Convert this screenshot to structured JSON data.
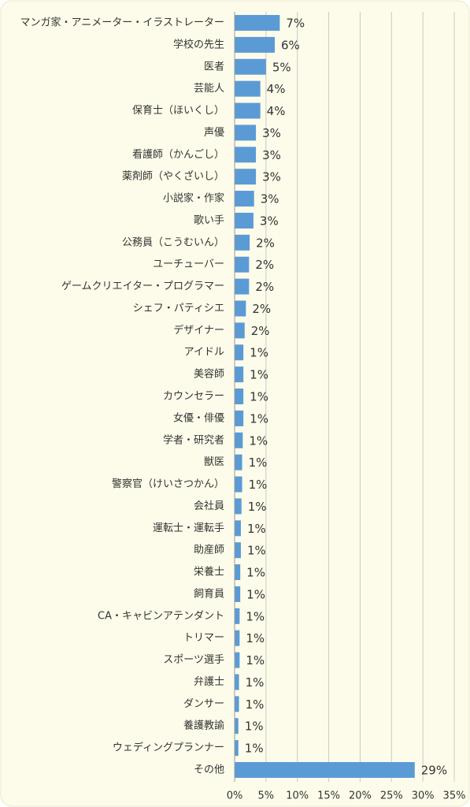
{
  "chart_data": {
    "type": "bar",
    "orientation": "horizontal",
    "categories": [
      "マンガ家・アニメーター・イラストレーター",
      "学校の先生",
      "医者",
      "芸能人",
      "保育士（ほいくし）",
      "声優",
      "看護師（かんごし）",
      "薬剤師（やくざいし）",
      "小説家・作家",
      "歌い手",
      "公務員（こうむいん）",
      "ユーチューバー",
      "ゲームクリエイター・プログラマー",
      "シェフ・パティシエ",
      "デザイナー",
      "アイドル",
      "美容師",
      "カウンセラー",
      "女優・俳優",
      "学者・研究者",
      "獣医",
      "警察官（けいさつかん）",
      "会社員",
      "運転士・運転手",
      "助産師",
      "栄養士",
      "飼育員",
      "CA・キャビンアテンダント",
      "トリマー",
      "スポーツ選手",
      "弁護士",
      "ダンサー",
      "養護教諭",
      "ウェディングプランナー",
      "その他"
    ],
    "values": [
      7.2,
      6.4,
      5.0,
      4.1,
      4.1,
      3.4,
      3.4,
      3.4,
      3.1,
      3.0,
      2.4,
      2.3,
      2.3,
      1.8,
      1.6,
      1.4,
      1.4,
      1.4,
      1.4,
      1.3,
      1.2,
      1.2,
      1.1,
      1.0,
      1.0,
      0.9,
      0.9,
      0.8,
      0.8,
      0.8,
      0.7,
      0.7,
      0.6,
      0.6,
      28.7
    ],
    "value_labels": [
      "7%",
      "6%",
      "5%",
      "4%",
      "4%",
      "3%",
      "3%",
      "3%",
      "3%",
      "3%",
      "2%",
      "2%",
      "2%",
      "2%",
      "2%",
      "1%",
      "1%",
      "1%",
      "1%",
      "1%",
      "1%",
      "1%",
      "1%",
      "1%",
      "1%",
      "1%",
      "1%",
      "1%",
      "1%",
      "1%",
      "1%",
      "1%",
      "1%",
      "1%",
      "29%"
    ],
    "color": "#5b9bd5",
    "xlim": [
      0,
      35
    ],
    "xticks": [
      {
        "value": 0,
        "label": "0%"
      },
      {
        "value": 5,
        "label": "5%"
      },
      {
        "value": 10,
        "label": "10%"
      },
      {
        "value": 15,
        "label": "15%"
      },
      {
        "value": 20,
        "label": "20%"
      },
      {
        "value": 25,
        "label": "25%"
      },
      {
        "value": 30,
        "label": "30%"
      },
      {
        "value": 35,
        "label": "35%"
      }
    ],
    "grid": true
  }
}
